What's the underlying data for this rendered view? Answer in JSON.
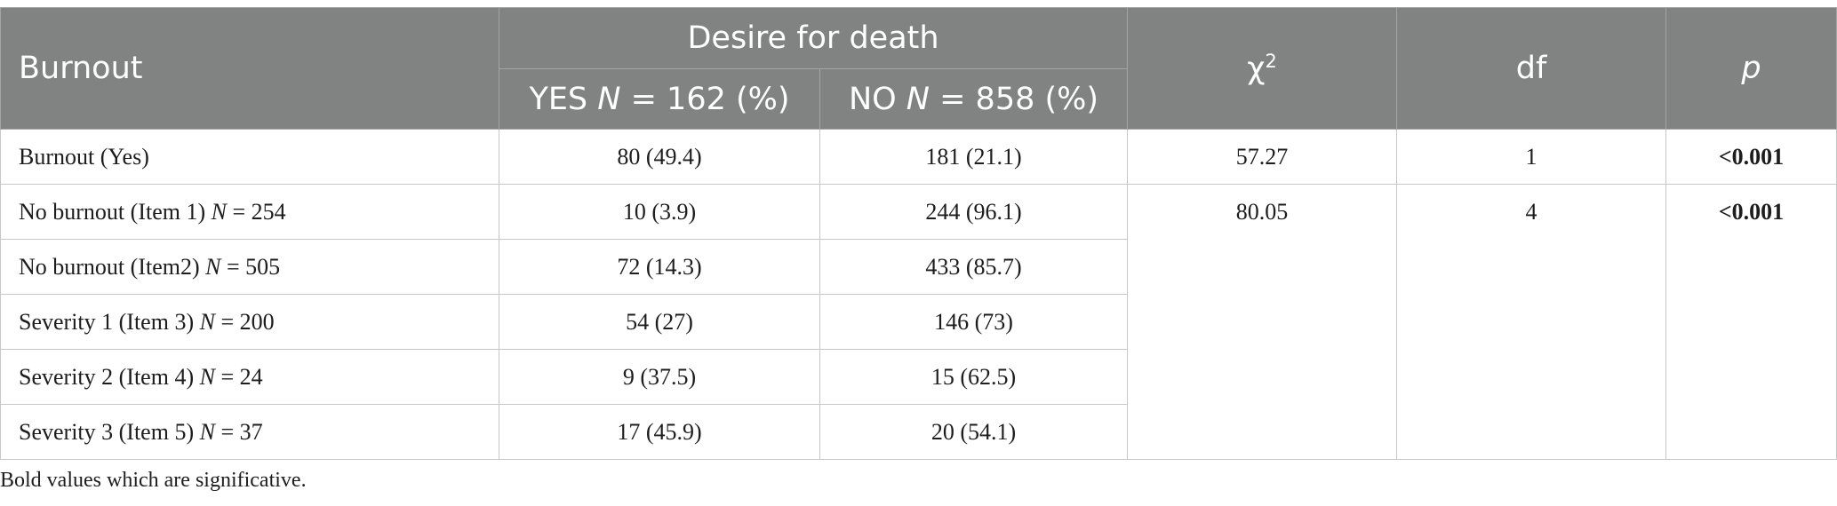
{
  "table": {
    "header": {
      "burnout": "Burnout",
      "group": "Desire for death",
      "yes_prefix": "YES ",
      "yes_n": "N",
      "yes_suffix": " = 162 (%)",
      "no_prefix": "NO ",
      "no_n": "N",
      "no_suffix": " = 858 (%)",
      "chi_base": "χ",
      "chi_sup": "2",
      "df": "df",
      "p": "p"
    },
    "rows": [
      {
        "label": "Burnout (Yes)",
        "n_label": "",
        "n_value": "",
        "yes": "80 (49.4)",
        "no": "181 (21.1)"
      },
      {
        "label": "No burnout (Item 1) ",
        "n_label": "N",
        "n_value": " = 254",
        "yes": "10 (3.9)",
        "no": "244 (96.1)"
      },
      {
        "label": "No burnout (Item2) ",
        "n_label": "N",
        "n_value": " = 505",
        "yes": "72 (14.3)",
        "no": "433 (85.7)"
      },
      {
        "label": "Severity 1 (Item 3) ",
        "n_label": "N",
        "n_value": " = 200",
        "yes": "54 (27)",
        "no": "146 (73)"
      },
      {
        "label": "Severity 2 (Item 4) ",
        "n_label": "N",
        "n_value": " = 24",
        "yes": "9 (37.5)",
        "no": "15 (62.5)"
      },
      {
        "label": "Severity 3 (Item 5) ",
        "n_label": "N",
        "n_value": " = 37",
        "yes": "17 (45.9)",
        "no": "20 (54.1)"
      }
    ],
    "stats": [
      {
        "chi": "57.27",
        "df": "1",
        "p": "<0.001"
      },
      {
        "chi": "80.05",
        "df": "4",
        "p": "<0.001"
      }
    ]
  },
  "footnote": "Bold values which are significative."
}
